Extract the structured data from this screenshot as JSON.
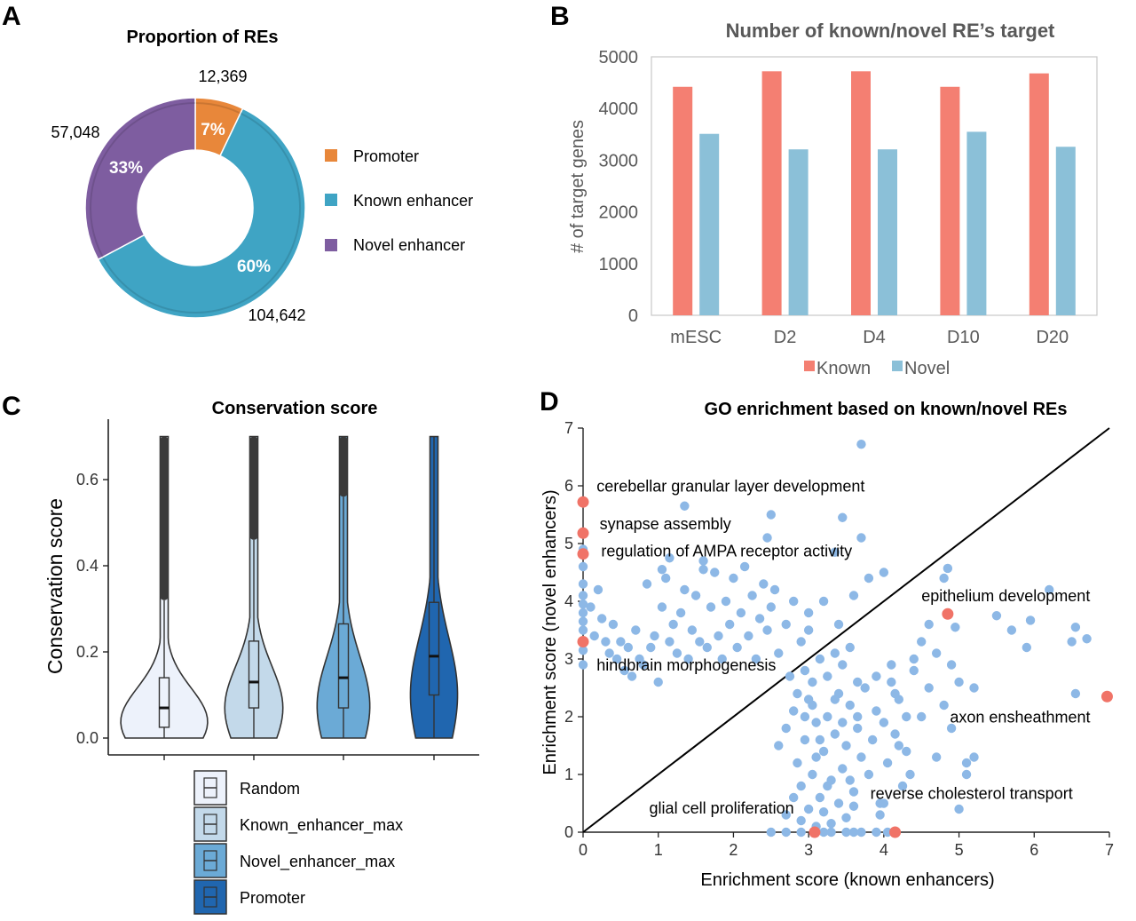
{
  "panels": {
    "a": {
      "label": "A",
      "title": "Proportion of REs"
    },
    "b": {
      "label": "B",
      "title": "Number of known/novel RE’s target"
    },
    "c": {
      "label": "C",
      "title": "Conservation score"
    },
    "d": {
      "label": "D",
      "title": "GO enrichment based on known/novel REs"
    }
  },
  "colors": {
    "promoter": "#E8873A",
    "known_enhancer": "#3FA4C4",
    "novel_enhancer": "#7E5DA0",
    "known_bar": "#F47F72",
    "novel_bar": "#8BC0D8",
    "violin_random": "#EDF2FB",
    "violin_known": "#C3D9EA",
    "violin_novel": "#6BAAD6",
    "violin_promoter": "#2066AF",
    "scatter_point": "#8DB8E6",
    "scatter_highlight": "#F07367"
  },
  "chart_data": [
    {
      "type": "pie",
      "title": "Proportion of REs",
      "style": "donut",
      "slices": [
        {
          "label": "Promoter",
          "value": 12369,
          "value_label": "12,369",
          "percent_label": "7%",
          "color": "#E8873A"
        },
        {
          "label": "Known enhancer",
          "value": 104642,
          "value_label": "104,642",
          "percent_label": "60%",
          "color": "#3FA4C4"
        },
        {
          "label": "Novel enhancer",
          "value": 57048,
          "value_label": "57,048",
          "percent_label": "33%",
          "color": "#7E5DA0"
        }
      ],
      "legend_position": "right"
    },
    {
      "type": "bar",
      "title": "Number of known/novel RE’s target",
      "categories": [
        "mESC",
        "D2",
        "D4",
        "D10",
        "D20"
      ],
      "series": [
        {
          "name": "Known",
          "values": [
            4420,
            4720,
            4720,
            4420,
            4680
          ],
          "color": "#F47F72"
        },
        {
          "name": "Novel",
          "values": [
            3510,
            3210,
            3210,
            3550,
            3260
          ],
          "color": "#8BC0D8"
        }
      ],
      "ylabel": "# of target genes",
      "ylim": [
        0,
        5000
      ],
      "yticks": [
        "0",
        "1000",
        "2000",
        "3000",
        "4000",
        "5000"
      ],
      "legend_position": "bottom"
    },
    {
      "type": "violin",
      "title": "Conservation score",
      "ylabel": "Conservation score",
      "ylim": [
        0,
        0.7
      ],
      "yticks": [
        "0.0",
        "0.2",
        "0.4",
        "0.6"
      ],
      "series": [
        {
          "name": "Random",
          "q1": 0.025,
          "median": 0.07,
          "q3": 0.14,
          "whisker_high": 0.32,
          "max": 0.7,
          "color": "#EDF2FB"
        },
        {
          "name": "Known_enhancer_max",
          "q1": 0.07,
          "median": 0.13,
          "q3": 0.225,
          "whisker_high": 0.46,
          "max": 0.7,
          "color": "#C3D9EA"
        },
        {
          "name": "Novel_enhancer_max",
          "q1": 0.07,
          "median": 0.14,
          "q3": 0.265,
          "whisker_high": 0.56,
          "max": 0.7,
          "color": "#6BAAD6"
        },
        {
          "name": "Promoter",
          "q1": 0.1,
          "median": 0.19,
          "q3": 0.315,
          "whisker_high": 0.7,
          "max": 0.7,
          "color": "#2066AF"
        }
      ],
      "legend_position": "bottom"
    },
    {
      "type": "scatter",
      "title": "GO enrichment based on known/novel REs",
      "xlabel": "Enrichment score (known enhancers)",
      "ylabel": "Enrichment score (novel enhancers)",
      "xlim": [
        0,
        7
      ],
      "ylim": [
        0,
        7
      ],
      "xticks": [
        "0",
        "1",
        "2",
        "3",
        "4",
        "5",
        "6",
        "7"
      ],
      "yticks": [
        "0",
        "1",
        "2",
        "3",
        "4",
        "5",
        "6",
        "7"
      ],
      "diagonal": true,
      "points": [
        [
          0.1,
          3.9
        ],
        [
          0.15,
          3.4
        ],
        [
          0.2,
          4.2
        ],
        [
          0.25,
          3.7
        ],
        [
          0.3,
          3.3
        ],
        [
          0.35,
          3.1
        ],
        [
          0.4,
          3.6
        ],
        [
          0.45,
          3.0
        ],
        [
          0.5,
          3.3
        ],
        [
          0.55,
          2.8
        ],
        [
          0.6,
          3.2
        ],
        [
          0.65,
          2.7
        ],
        [
          0.7,
          3.5
        ],
        [
          0.75,
          3.0
        ],
        [
          0.8,
          2.9
        ],
        [
          0.85,
          4.3
        ],
        [
          0.9,
          3.2
        ],
        [
          0.95,
          3.4
        ],
        [
          1.0,
          2.6
        ],
        [
          1.05,
          3.9
        ],
        [
          1.1,
          4.4
        ],
        [
          1.15,
          3.3
        ],
        [
          1.2,
          3.6
        ],
        [
          1.25,
          3.1
        ],
        [
          1.3,
          3.8
        ],
        [
          1.35,
          4.2
        ],
        [
          1.4,
          3.0
        ],
        [
          1.45,
          3.5
        ],
        [
          1.5,
          4.1
        ],
        [
          1.55,
          3.3
        ],
        [
          1.6,
          4.7
        ],
        [
          1.65,
          3.2
        ],
        [
          1.7,
          3.9
        ],
        [
          1.75,
          4.5
        ],
        [
          1.8,
          3.4
        ],
        [
          1.85,
          3.0
        ],
        [
          1.9,
          4.0
        ],
        [
          1.95,
          3.6
        ],
        [
          2.0,
          4.4
        ],
        [
          2.05,
          3.2
        ],
        [
          2.1,
          3.8
        ],
        [
          2.15,
          4.6
        ],
        [
          2.2,
          3.4
        ],
        [
          2.25,
          4.1
        ],
        [
          2.3,
          3.0
        ],
        [
          2.35,
          3.7
        ],
        [
          2.4,
          4.3
        ],
        [
          2.45,
          3.5
        ],
        [
          2.5,
          3.9
        ],
        [
          2.55,
          4.2
        ],
        [
          2.6,
          3.1
        ],
        [
          2.7,
          3.6
        ],
        [
          2.8,
          4.0
        ],
        [
          2.9,
          3.3
        ],
        [
          3.0,
          3.8
        ],
        [
          3.2,
          4.0
        ],
        [
          3.4,
          3.6
        ],
        [
          3.6,
          4.1
        ],
        [
          3.8,
          4.4
        ],
        [
          4.0,
          4.5
        ],
        [
          1.35,
          5.65
        ],
        [
          2.5,
          5.5
        ],
        [
          3.45,
          5.45
        ],
        [
          3.7,
          5.1
        ],
        [
          3.7,
          6.72
        ],
        [
          2.45,
          5.1
        ],
        [
          3.35,
          4.85
        ],
        [
          1.15,
          4.75
        ],
        [
          1.05,
          4.55
        ],
        [
          1.6,
          4.55
        ],
        [
          0.0,
          4.1
        ],
        [
          0.0,
          3.8
        ],
        [
          0.0,
          3.5
        ],
        [
          0.0,
          3.15
        ],
        [
          0.0,
          2.9
        ],
        [
          0.0,
          4.6
        ],
        [
          0.0,
          4.3
        ],
        [
          0.0,
          3.65
        ],
        [
          0.0,
          3.95
        ],
        [
          0.0,
          4.9
        ],
        [
          2.6,
          1.5
        ],
        [
          2.7,
          1.8
        ],
        [
          2.8,
          2.1
        ],
        [
          2.85,
          1.2
        ],
        [
          2.9,
          0.8
        ],
        [
          2.95,
          1.6
        ],
        [
          3.0,
          2.3
        ],
        [
          3.05,
          1.0
        ],
        [
          3.1,
          1.9
        ],
        [
          3.15,
          0.6
        ],
        [
          3.2,
          1.4
        ],
        [
          3.25,
          2.0
        ],
        [
          3.3,
          0.9
        ],
        [
          3.35,
          1.7
        ],
        [
          3.4,
          2.4
        ],
        [
          3.45,
          1.1
        ],
        [
          3.5,
          1.5
        ],
        [
          3.55,
          2.2
        ],
        [
          3.6,
          0.7
        ],
        [
          3.65,
          1.8
        ],
        [
          3.7,
          1.3
        ],
        [
          3.75,
          2.5
        ],
        [
          3.8,
          1.0
        ],
        [
          3.85,
          1.6
        ],
        [
          3.9,
          2.1
        ],
        [
          3.95,
          0.5
        ],
        [
          4.0,
          1.9
        ],
        [
          4.05,
          1.2
        ],
        [
          4.1,
          2.6
        ],
        [
          4.15,
          1.7
        ],
        [
          4.2,
          2.3
        ],
        [
          4.3,
          1.4
        ],
        [
          4.4,
          2.8
        ],
        [
          4.5,
          2.0
        ],
        [
          4.6,
          2.5
        ],
        [
          4.7,
          1.3
        ],
        [
          4.8,
          2.2
        ],
        [
          4.9,
          1.8
        ],
        [
          5.0,
          2.6
        ],
        [
          5.1,
          1.0
        ],
        [
          2.75,
          2.7
        ],
        [
          2.85,
          2.4
        ],
        [
          2.95,
          2.8
        ],
        [
          3.05,
          2.6
        ],
        [
          3.15,
          3.0
        ],
        [
          3.25,
          2.7
        ],
        [
          3.35,
          3.1
        ],
        [
          3.45,
          2.9
        ],
        [
          3.55,
          3.2
        ],
        [
          3.65,
          2.6
        ],
        [
          2.7,
          0.3
        ],
        [
          2.8,
          0.6
        ],
        [
          2.9,
          0.2
        ],
        [
          3.0,
          0.4
        ],
        [
          3.1,
          0.1
        ],
        [
          3.2,
          0.35
        ],
        [
          3.3,
          0.15
        ],
        [
          3.4,
          0.5
        ],
        [
          3.5,
          0.25
        ],
        [
          3.6,
          0.45
        ],
        [
          2.5,
          0.0
        ],
        [
          2.7,
          0.0
        ],
        [
          2.9,
          0.0
        ],
        [
          3.2,
          0.0
        ],
        [
          3.3,
          0.0
        ],
        [
          3.5,
          0.0
        ],
        [
          3.6,
          0.0
        ],
        [
          3.7,
          0.0
        ],
        [
          3.9,
          0.0
        ],
        [
          4.05,
          0.0
        ],
        [
          3.0,
          3.5
        ],
        [
          3.1,
          1.3
        ],
        [
          2.95,
          2.0
        ],
        [
          3.05,
          2.2
        ],
        [
          3.15,
          1.6
        ],
        [
          3.25,
          0.8
        ],
        [
          3.35,
          2.3
        ],
        [
          3.45,
          1.9
        ],
        [
          3.55,
          0.9
        ],
        [
          3.65,
          2.0
        ],
        [
          4.4,
          3.0
        ],
        [
          4.5,
          3.3
        ],
        [
          4.6,
          3.6
        ],
        [
          4.7,
          3.1
        ],
        [
          4.8,
          4.4
        ],
        [
          4.85,
          4.57
        ],
        [
          4.95,
          3.55
        ],
        [
          4.9,
          2.9
        ],
        [
          5.2,
          2.5
        ],
        [
          5.5,
          3.75
        ],
        [
          5.7,
          3.5
        ],
        [
          5.9,
          3.2
        ],
        [
          5.95,
          3.67
        ],
        [
          6.2,
          4.2
        ],
        [
          6.5,
          3.3
        ],
        [
          6.55,
          3.55
        ],
        [
          6.7,
          3.35
        ],
        [
          6.55,
          2.4
        ],
        [
          5.2,
          1.3
        ],
        [
          5.1,
          1.2
        ],
        [
          4.35,
          1.0
        ],
        [
          4.25,
          0.8
        ],
        [
          4.0,
          0.5
        ],
        [
          3.95,
          0.3
        ],
        [
          5.0,
          0.4
        ],
        [
          4.2,
          1.5
        ],
        [
          4.1,
          2.9
        ],
        [
          3.9,
          2.7
        ],
        [
          4.3,
          2.0
        ],
        [
          4.15,
          2.4
        ]
      ],
      "highlight_points": [
        [
          0.0,
          5.72
        ],
        [
          0.0,
          5.18
        ],
        [
          0.0,
          4.82
        ],
        [
          0.0,
          3.3
        ],
        [
          4.85,
          3.78
        ],
        [
          6.97,
          2.35
        ],
        [
          3.08,
          0.0
        ],
        [
          4.15,
          0.0
        ]
      ],
      "annotations": [
        {
          "text": "cerebellar granular layer development",
          "x": 0.18,
          "y": 5.9
        },
        {
          "text": "synapse assembly",
          "x": 0.22,
          "y": 5.25
        },
        {
          "text": "regulation of AMPA receptor activity",
          "x": 0.24,
          "y": 4.78
        },
        {
          "text": "epithelium development",
          "x": 4.5,
          "y": 4.0
        },
        {
          "text": "hindbrain morphogenesis",
          "x": 0.18,
          "y": 2.8
        },
        {
          "text": "axon ensheathment",
          "x": 4.88,
          "y": 1.9
        },
        {
          "text": "reverse cholesterol transport",
          "x": 3.82,
          "y": 0.58
        },
        {
          "text": "glial cell proliferation",
          "x": 0.88,
          "y": 0.32
        }
      ]
    }
  ]
}
